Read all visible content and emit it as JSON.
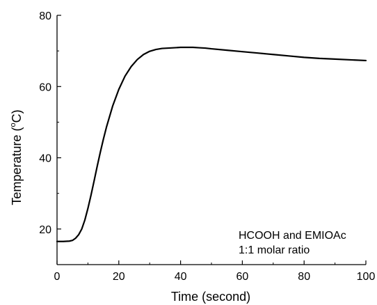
{
  "chart_data": {
    "type": "line",
    "xlabel": "Time (second)",
    "ylabel": {
      "pre": "Temperature (",
      "sup": "o",
      "post": "C)"
    },
    "xlim": [
      0,
      100
    ],
    "ylim": [
      10,
      80
    ],
    "xticks": [
      0,
      20,
      40,
      60,
      80,
      100
    ],
    "yticks": [
      20,
      40,
      60,
      80
    ],
    "grid": false,
    "annotations": [
      "HCOOH and EMIOAc",
      "1:1 molar ratio"
    ],
    "series": [
      {
        "color": "#000000",
        "x": [
          0,
          2,
          4,
          5,
          6,
          7,
          8,
          9,
          10,
          11,
          12,
          13,
          14,
          15,
          16,
          18,
          20,
          22,
          24,
          26,
          28,
          30,
          32,
          34,
          36,
          38,
          40,
          42,
          44,
          46,
          48,
          50,
          55,
          60,
          65,
          70,
          75,
          80,
          85,
          90,
          95,
          100
        ],
        "y": [
          16.5,
          16.5,
          16.6,
          16.8,
          17.4,
          18.4,
          20.0,
          22.5,
          25.8,
          29.5,
          33.5,
          37.6,
          41.5,
          45.2,
          48.6,
          54.5,
          59.2,
          62.9,
          65.6,
          67.6,
          69.0,
          69.9,
          70.4,
          70.7,
          70.8,
          70.9,
          71.0,
          71.0,
          71.0,
          70.9,
          70.8,
          70.6,
          70.2,
          69.8,
          69.4,
          69.0,
          68.6,
          68.2,
          67.9,
          67.7,
          67.5,
          67.3
        ]
      }
    ]
  }
}
